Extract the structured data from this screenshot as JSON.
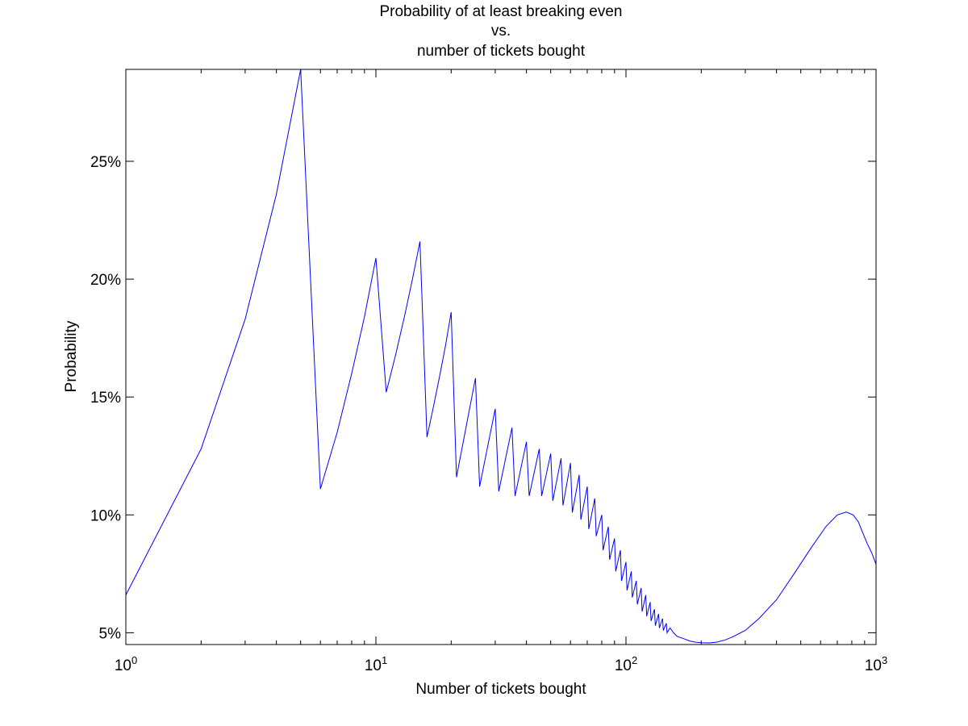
{
  "chart_data": {
    "type": "line",
    "title_lines": [
      "Probability of at least breaking even",
      "vs.",
      "number of tickets bought"
    ],
    "xlabel": "Number of tickets bought",
    "ylabel": "Probability",
    "xscale": "log",
    "xlim": [
      1,
      1000
    ],
    "ylim": [
      4.5,
      28.9
    ],
    "y_unit": "%",
    "x_ticks": [
      {
        "value": 1,
        "base": "10",
        "exp": "0"
      },
      {
        "value": 10,
        "base": "10",
        "exp": "1"
      },
      {
        "value": 100,
        "base": "10",
        "exp": "2"
      },
      {
        "value": 1000,
        "base": "10",
        "exp": "3"
      }
    ],
    "y_ticks": [
      {
        "value": 5,
        "label": "5%"
      },
      {
        "value": 10,
        "label": "10%"
      },
      {
        "value": 15,
        "label": "15%"
      },
      {
        "value": 20,
        "label": "20%"
      },
      {
        "value": 25,
        "label": "25%"
      }
    ],
    "series": [
      {
        "name": "Probability",
        "color": "#0000ff",
        "x": [
          1,
          2,
          3,
          4,
          5,
          6,
          7,
          8,
          9,
          10,
          11,
          12,
          13,
          14,
          15,
          16,
          17,
          18,
          19,
          20,
          21,
          25,
          26,
          30,
          31,
          35,
          36,
          40,
          41,
          45,
          46,
          50,
          51,
          55,
          56,
          60,
          61,
          65,
          66,
          70,
          71,
          75,
          76,
          80,
          81,
          85,
          86,
          90,
          91,
          95,
          96,
          100,
          101,
          105,
          106,
          110,
          111,
          115,
          116,
          120,
          121,
          125,
          126,
          130,
          131,
          135,
          136,
          140,
          141,
          145,
          146,
          150,
          155,
          160,
          170,
          180,
          190,
          200,
          215,
          230,
          250,
          270,
          300,
          340,
          400,
          470,
          550,
          630,
          700,
          760,
          810,
          850,
          880,
          920,
          960,
          1000
        ],
        "y": [
          6.6,
          12.8,
          18.3,
          23.6,
          28.9,
          11.1,
          13.5,
          16.0,
          18.4,
          20.9,
          15.2,
          16.8,
          18.4,
          20.0,
          21.6,
          13.3,
          14.6,
          15.9,
          17.2,
          18.6,
          11.6,
          15.8,
          11.2,
          14.5,
          11.0,
          13.7,
          10.8,
          13.1,
          10.8,
          12.8,
          10.8,
          12.6,
          10.6,
          12.4,
          10.4,
          12.2,
          10.1,
          11.7,
          9.8,
          11.2,
          9.4,
          10.7,
          9.1,
          10.0,
          8.5,
          9.5,
          8.1,
          9.0,
          7.6,
          8.5,
          7.2,
          8.0,
          6.8,
          7.6,
          6.5,
          7.2,
          6.2,
          6.9,
          5.9,
          6.6,
          5.7,
          6.3,
          5.5,
          6.0,
          5.3,
          5.8,
          5.2,
          5.6,
          5.1,
          5.4,
          5.0,
          5.2,
          5.0,
          4.85,
          4.75,
          4.65,
          4.6,
          4.58,
          4.57,
          4.6,
          4.7,
          4.85,
          5.1,
          5.6,
          6.4,
          7.5,
          8.6,
          9.5,
          10.0,
          10.12,
          10.0,
          9.7,
          9.3,
          8.8,
          8.4,
          7.9
        ]
      }
    ]
  }
}
